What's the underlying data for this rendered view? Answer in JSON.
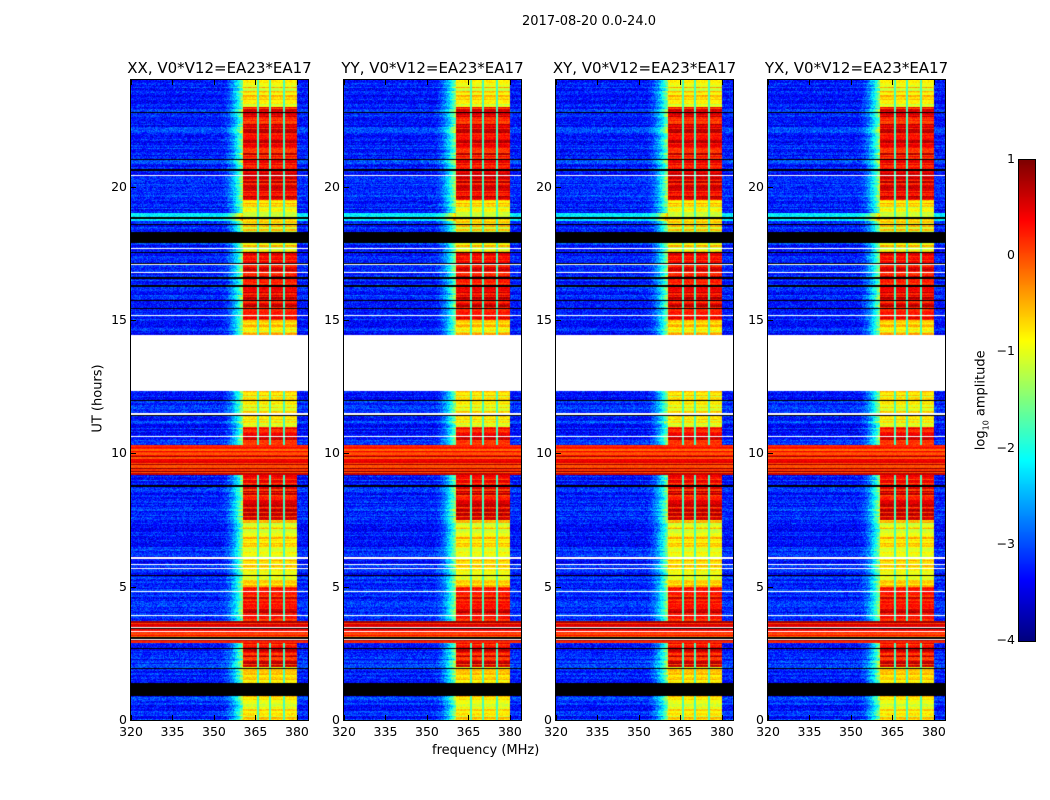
{
  "chart_data": {
    "type": "heatmap",
    "title": "2017-08-20 0.0-24.0",
    "xlabel": "frequency (MHz)",
    "ylabel": "UT (hours)",
    "xlim": [
      320,
      384
    ],
    "ylim": [
      0,
      24
    ],
    "xticks": [
      "320",
      "335",
      "350",
      "365",
      "380"
    ],
    "xtick_values": [
      320,
      335,
      350,
      365,
      380
    ],
    "yticks": [
      "0",
      "5",
      "10",
      "15",
      "20"
    ],
    "ytick_values": [
      0,
      5,
      10,
      15,
      20
    ],
    "panels": [
      {
        "title": "XX, V0*V12=EA23*EA17"
      },
      {
        "title": "YY, V0*V12=EA23*EA17"
      },
      {
        "title": "XY, V0*V12=EA23*EA17"
      },
      {
        "title": "YX, V0*V12=EA23*EA17"
      }
    ],
    "colorbar": {
      "label_main": "log",
      "label_sub": "10",
      "label_tail": " amplitude",
      "colormap": "jet",
      "range": [
        -4,
        1
      ],
      "ticks": [
        "1",
        "0",
        "−1",
        "−2",
        "−3",
        "−4"
      ],
      "tick_values": [
        1,
        0,
        -1,
        -2,
        -3,
        -4
      ]
    },
    "features": {
      "background_level": -3.2,
      "band_mhz": [
        360.5,
        380
      ],
      "band_dividers_mhz": [
        366,
        370.3,
        375.3
      ],
      "band_ramp_start_mhz": 352,
      "band_level_low": -0.8,
      "band_level_high": 0.4,
      "band_high_intervals_hours": [
        [
          2.0,
          5.0
        ],
        [
          7.5,
          11.0
        ],
        [
          15.0,
          17.5
        ],
        [
          19.5,
          23.0
        ]
      ],
      "rfi_intervals_hours": [
        [
          2.9,
          3.7
        ],
        [
          9.2,
          10.3
        ]
      ],
      "blank_intervals_hours": [
        [
          12.35,
          14.45
        ]
      ],
      "black_intervals_hours": [
        [
          0.9,
          1.35
        ],
        [
          17.9,
          18.3
        ]
      ],
      "cyan_intervals_hours": [
        [
          18.7,
          19.0
        ]
      ]
    }
  }
}
